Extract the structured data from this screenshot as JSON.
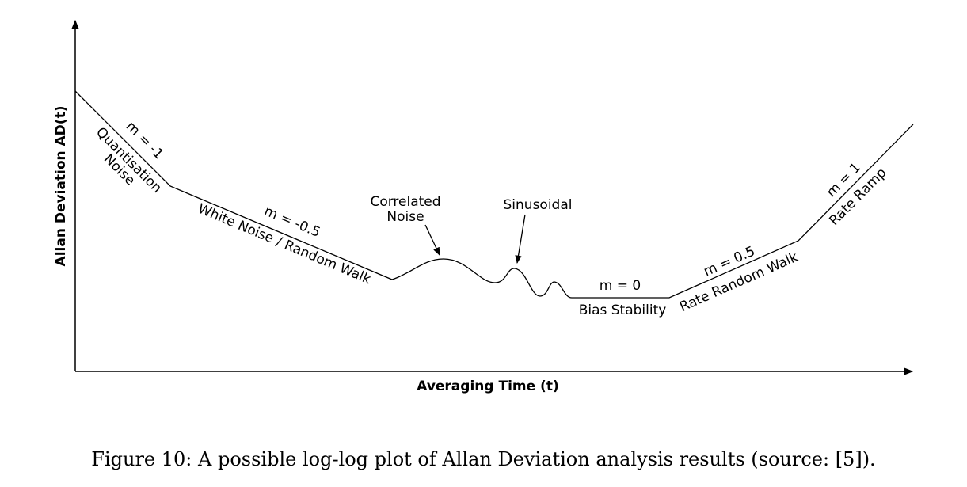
{
  "chart_data": {
    "type": "line",
    "xlabel": "Averaging Time (t)",
    "ylabel": "Allan Deviation AD(t)",
    "axes_scale": "log-log (schematic, no ticks)",
    "regions": [
      {
        "slope_label": "m = -1",
        "name": "Quantisation Noise"
      },
      {
        "slope_label": "m = -0.5",
        "name": "White Noise / Random Walk"
      },
      {
        "name": "Correlated Noise"
      },
      {
        "name": "Sinusoidal"
      },
      {
        "slope_label": "m = 0",
        "name": "Bias Stability"
      },
      {
        "slope_label": "m = 0.5",
        "name": "Rate Random Walk"
      },
      {
        "slope_label": "m = 1",
        "name": "Rate Ramp"
      }
    ]
  },
  "labels": {
    "m_neg1": "m = -1",
    "quant_line1": "Quantisation",
    "quant_line2": "Noise",
    "m_neg05": "m = -0.5",
    "white_noise": "White Noise / Random Walk",
    "correlated_line1": "Correlated",
    "correlated_line2": "Noise",
    "sinusoidal": "Sinusoidal",
    "m_0": "m = 0",
    "bias_stability": "Bias Stability",
    "m_05": "m = 0.5",
    "rate_random_walk": "Rate Random Walk",
    "m_1": "m = 1",
    "rate_ramp": "Rate Ramp"
  },
  "caption": "Figure 10: A possible log-log plot of Allan Deviation analysis results (source: [5])."
}
